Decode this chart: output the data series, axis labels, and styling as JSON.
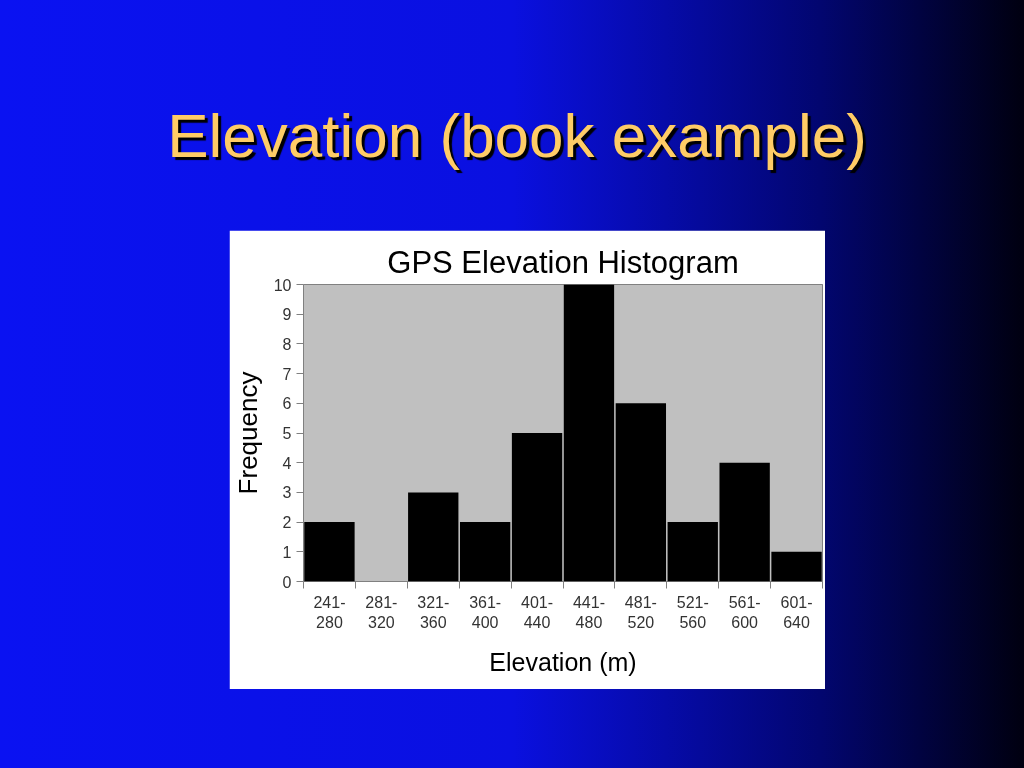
{
  "chart_data": {
    "type": "bar",
    "title": "Elevation (book example)",
    "subtitle": "GPS Elevation Histogram",
    "xlabel": "Elevation (m)",
    "ylabel": "Frequency",
    "categories": [
      "241-280",
      "281-320",
      "321-360",
      "361-400",
      "401-440",
      "441-480",
      "481-520",
      "521-560",
      "561-600",
      "601-640"
    ],
    "values": [
      2,
      0,
      3,
      2,
      5,
      10,
      6,
      2,
      4,
      1
    ],
    "color": "#000000",
    "ylim": [
      0,
      10
    ],
    "yticks": [
      0,
      1,
      2,
      3,
      4,
      5,
      6,
      7,
      8,
      9,
      10
    ]
  }
}
